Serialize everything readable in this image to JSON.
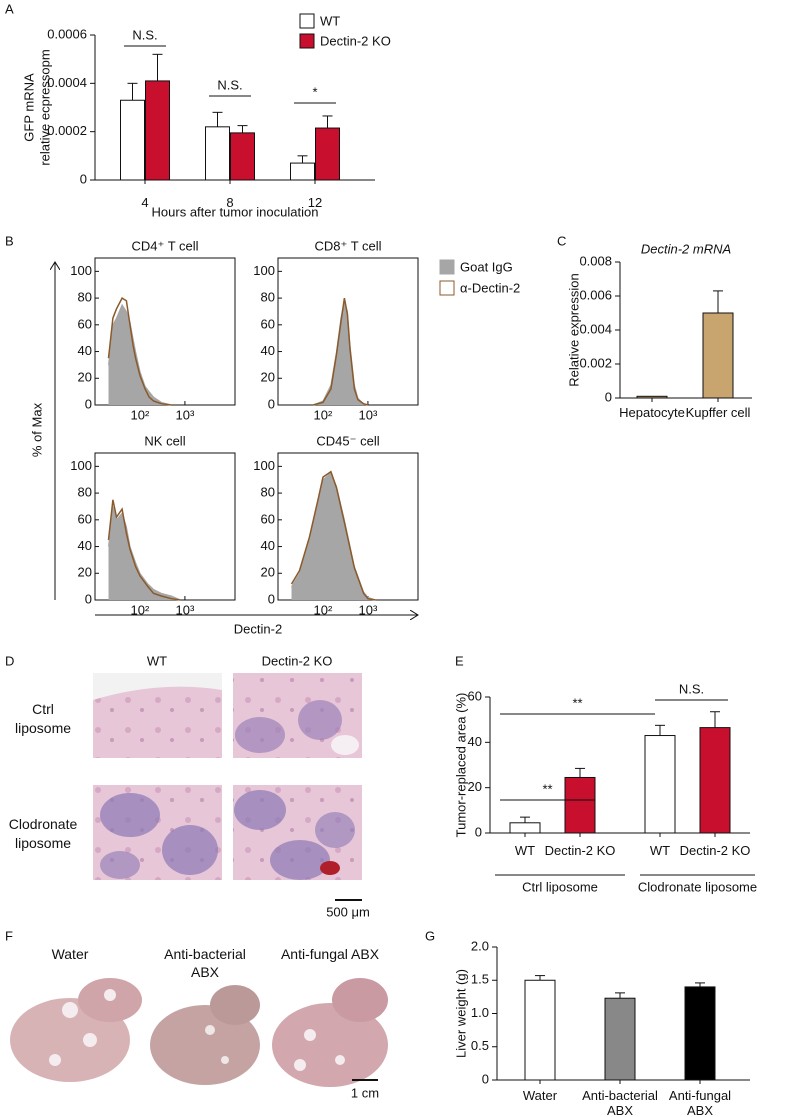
{
  "panel_labels": [
    "A",
    "B",
    "C",
    "D",
    "E",
    "F",
    "G"
  ],
  "flow_axes": {
    "y_label": "% of Max",
    "x_label": "Dectin-2"
  },
  "micrographs": {
    "columns": [
      "WT",
      "Dectin-2 KO"
    ],
    "rows": [
      "Ctrl liposome",
      "Clodronate liposome"
    ],
    "scale_bar": "500 μm"
  },
  "liver_photos": {
    "labels": [
      "Water",
      "Anti-bacterial ABX",
      "Anti-fungal ABX"
    ],
    "scale_bar": "1 cm"
  },
  "chart_data": [
    {
      "type": "bar",
      "y_label": [
        "GFP mRNA",
        "relative ecpressopm"
      ],
      "x_label": "Hours after tumor inoculation",
      "categories": [
        "4",
        "8",
        "12"
      ],
      "series": [
        {
          "name": "WT",
          "color": "#ffffff",
          "values": [
            0.00033,
            0.00022,
            7e-05
          ],
          "errors": [
            7e-05,
            6e-05,
            3e-05
          ]
        },
        {
          "name": "Dectin-2 KO",
          "color": "#c8102e",
          "values": [
            0.00041,
            0.000195,
            0.000215
          ],
          "errors": [
            0.00011,
            3e-05,
            5e-05
          ]
        }
      ],
      "annotations": [
        "N.S.",
        "N.S.",
        "*"
      ],
      "ylim": [
        0,
        0.0006
      ],
      "yticks": [
        0,
        0.0002,
        0.0004,
        0.0006
      ]
    },
    {
      "type": "density",
      "title": "CD4⁺ T cell",
      "x": [
        20,
        25,
        30,
        40,
        50,
        60,
        70,
        80,
        100,
        130,
        160,
        200,
        300,
        500
      ],
      "series": [
        {
          "name": "Goat IgG",
          "color": "#a6a6a6",
          "values": [
            30,
            60,
            65,
            75,
            70,
            62,
            50,
            40,
            25,
            14,
            10,
            6,
            2,
            0
          ]
        },
        {
          "name": "α-Dectin-2",
          "color": "#8b5a2b",
          "values": [
            35,
            65,
            72,
            80,
            78,
            60,
            45,
            35,
            22,
            12,
            6,
            3,
            1,
            0
          ]
        }
      ],
      "xlim": [
        10,
        13000
      ],
      "log_x": true,
      "ylim": [
        0,
        110
      ],
      "yticks": [
        0,
        20,
        40,
        60,
        80,
        100
      ],
      "xticks": [
        {
          "value": 100,
          "label": "10²"
        },
        {
          "value": 1000,
          "label": "10³"
        }
      ]
    },
    {
      "type": "density",
      "title": "CD8⁺ T cell",
      "x": [
        60,
        100,
        150,
        200,
        250,
        300,
        350,
        400,
        500,
        600,
        800,
        1000
      ],
      "series": [
        {
          "name": "Goat IgG",
          "color": "#a6a6a6",
          "values": [
            0,
            3,
            15,
            40,
            65,
            78,
            70,
            45,
            15,
            5,
            1,
            0
          ]
        },
        {
          "name": "α-Dectin-2",
          "color": "#8b5a2b",
          "values": [
            0,
            2,
            12,
            38,
            62,
            80,
            68,
            42,
            12,
            4,
            1,
            0
          ]
        }
      ],
      "xlim": [
        10,
        13000
      ],
      "log_x": true,
      "ylim": [
        0,
        110
      ],
      "yticks": [
        0,
        20,
        40,
        60,
        80,
        100
      ],
      "xticks": [
        {
          "value": 100,
          "label": "10²"
        },
        {
          "value": 1000,
          "label": "10³"
        }
      ]
    },
    {
      "type": "density",
      "title": "NK cell",
      "x": [
        20,
        25,
        30,
        40,
        50,
        60,
        80,
        100,
        150,
        200,
        300,
        500,
        800
      ],
      "series": [
        {
          "name": "Goat IgG",
          "color": "#a6a6a6",
          "values": [
            40,
            70,
            60,
            65,
            55,
            40,
            28,
            20,
            12,
            8,
            5,
            3,
            0
          ]
        },
        {
          "name": "α-Dectin-2",
          "color": "#8b5a2b",
          "values": [
            45,
            75,
            62,
            68,
            50,
            38,
            25,
            18,
            10,
            5,
            3,
            1,
            0
          ]
        }
      ],
      "xlim": [
        10,
        13000
      ],
      "log_x": true,
      "ylim": [
        0,
        110
      ],
      "yticks": [
        0,
        20,
        40,
        60,
        80,
        100
      ],
      "xticks": [
        {
          "value": 100,
          "label": "10²"
        },
        {
          "value": 1000,
          "label": "10³"
        }
      ]
    },
    {
      "type": "density",
      "title": "CD45⁻ cell",
      "x": [
        20,
        30,
        50,
        80,
        100,
        150,
        200,
        300,
        500,
        800,
        1000,
        1500
      ],
      "series": [
        {
          "name": "Goat IgG",
          "color": "#a6a6a6",
          "values": [
            10,
            20,
            45,
            75,
            90,
            95,
            85,
            60,
            25,
            6,
            2,
            0
          ]
        },
        {
          "name": "α-Dectin-2",
          "color": "#8b5a2b",
          "values": [
            12,
            22,
            47,
            77,
            92,
            96,
            84,
            58,
            24,
            5,
            1,
            0
          ]
        }
      ],
      "xlim": [
        10,
        13000
      ],
      "log_x": true,
      "ylim": [
        0,
        110
      ],
      "yticks": [
        0,
        20,
        40,
        60,
        80,
        100
      ],
      "xticks": [
        {
          "value": 100,
          "label": "10²"
        },
        {
          "value": 1000,
          "label": "10³"
        }
      ]
    },
    {
      "type": "bar",
      "title": "Dectin-2 mRNA",
      "y_label": [
        "Relative expression"
      ],
      "categories": [
        "Hepatocyte",
        "Kupffer cell"
      ],
      "values": [
        0.0001,
        0.005
      ],
      "errors": [
        0,
        0.0013
      ],
      "colors": [
        "#c8a46e",
        "#c8a46e"
      ],
      "ylim": [
        0,
        0.008
      ],
      "yticks": [
        0,
        0.002,
        0.004,
        0.006,
        0.008
      ]
    },
    {
      "type": "bar",
      "y_label": [
        "Tumor-replaced area (%)"
      ],
      "categories": [
        "WT",
        "Dectin-2 KO",
        "WT",
        "Dectin-2 KO"
      ],
      "values": [
        4.5,
        24.5,
        43,
        46.5
      ],
      "errors": [
        2.5,
        4,
        4.5,
        7
      ],
      "colors": [
        "#ffffff",
        "#c8102e",
        "#ffffff",
        "#c8102e"
      ],
      "groups": [
        "Ctrl liposome",
        "Clodronate liposome"
      ],
      "annotations": [
        "**",
        "**",
        "N.S."
      ],
      "ylim": [
        0,
        60
      ],
      "yticks": [
        0,
        20,
        40,
        60
      ]
    },
    {
      "type": "bar",
      "y_label": [
        "Liver weight (g)"
      ],
      "categories": [
        "Water",
        "Anti-bacterial ABX",
        "Anti-fungal ABX"
      ],
      "values": [
        1.5,
        1.23,
        1.4
      ],
      "errors": [
        0.07,
        0.08,
        0.06
      ],
      "colors": [
        "#ffffff",
        "#888888",
        "#000000"
      ],
      "ylim": [
        0,
        2
      ],
      "yticks": [
        0,
        {
          "value": 0.5,
          "label": "0.5"
        },
        {
          "value": 1,
          "label": "1.0"
        },
        {
          "value": 1.5,
          "label": "1.5"
        },
        {
          "value": 2,
          "label": "2.0"
        }
      ]
    }
  ]
}
